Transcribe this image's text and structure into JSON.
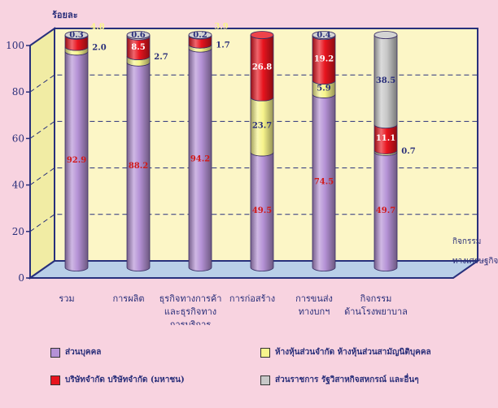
{
  "chart_data": {
    "type": "bar",
    "stacked": true,
    "three_d": true,
    "ylabel": "ร้อยละ",
    "xlabel": "กิจกรรม ทางเศรษฐกิจ",
    "ylim": [
      0,
      100
    ],
    "yticks": [
      0,
      20,
      40,
      60,
      80,
      100
    ],
    "categories": [
      [
        "รวม"
      ],
      [
        "การผลิต"
      ],
      [
        "ธุรกิจทางการค้า",
        "และธุรกิจทาง",
        "การบริการ"
      ],
      [
        "การก่อสร้าง"
      ],
      [
        "การขนส่ง",
        "ทางบกฯ"
      ],
      [
        "กิจกรรม",
        "ด้านโรงพยาบาล"
      ]
    ],
    "series": [
      {
        "name": "ส่วนบุคคล",
        "color": "#b592d6",
        "values": [
          92.9,
          88.2,
          94.2,
          49.5,
          74.5,
          49.7
        ]
      },
      {
        "name": "ห้างหุ้นส่วนจำกัด ห้างหุ้นส่วนสามัญนิติบุคคล",
        "color": "#f7f48c",
        "values": [
          2.0,
          2.7,
          1.7,
          23.7,
          5.9,
          0.7
        ]
      },
      {
        "name": "บริษัทจำกัด บริษัทจำกัด (มหาชน)",
        "color": "#e8141e",
        "values": [
          4.8,
          8.5,
          3.9,
          26.8,
          19.2,
          11.1
        ]
      },
      {
        "name": "ส่วนราชการ รัฐวิสาหกิจสหกรณ์ และอื่นๆ",
        "color": "#c8c8c8",
        "values": [
          0.3,
          0.6,
          0.2,
          0.0,
          0.4,
          38.5
        ]
      }
    ],
    "legend_position": "bottom",
    "grid": true
  }
}
